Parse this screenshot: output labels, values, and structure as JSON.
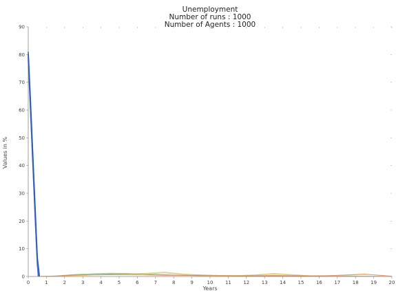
{
  "chart_data": {
    "type": "line",
    "title": [
      "Unemployment",
      "Number of runs : 1000",
      "Number of Agents : 1000"
    ],
    "xlabel": "Years",
    "ylabel": "Values in %",
    "xlim": [
      0,
      20
    ],
    "ylim": [
      0,
      90
    ],
    "xticks": [
      0,
      1,
      2,
      3,
      4,
      5,
      6,
      7,
      8,
      9,
      10,
      11,
      12,
      13,
      14,
      15,
      16,
      17,
      18,
      19,
      20
    ],
    "yticks": [
      0,
      10,
      20,
      30,
      40,
      50,
      60,
      70,
      80,
      90
    ],
    "grid": false,
    "series_colors": [
      "#2b2f7f",
      "#3b4bb0",
      "#5a6fd0",
      "#1f5fa8",
      "#3a8f6a",
      "#7ab85a",
      "#c9c95a",
      "#e3b04a",
      "#e07a5f",
      "#d0445a",
      "#9b4db0",
      "#6a3fa0"
    ],
    "series": [
      {
        "x": [
          0,
          0.1,
          0.2,
          0.3,
          0.4,
          0.5,
          0.6
        ],
        "values": [
          80,
          66,
          51,
          36,
          21,
          6,
          0
        ]
      },
      {
        "x": [
          0,
          0.1,
          0.2,
          0.3,
          0.4,
          0.5,
          0.55
        ],
        "values": [
          79,
          64,
          49,
          34,
          19,
          5,
          0
        ]
      },
      {
        "x": [
          0,
          0.1,
          0.2,
          0.3,
          0.4,
          0.5,
          0.58
        ],
        "values": [
          78,
          63,
          48,
          33,
          18,
          4,
          0
        ]
      },
      {
        "x": [
          0,
          0.1,
          0.2,
          0.3,
          0.4,
          0.5,
          0.62
        ],
        "values": [
          81,
          67,
          52,
          37,
          22,
          7,
          0
        ]
      },
      {
        "x": [
          0.6,
          1.5,
          2.5,
          3.5,
          4.5,
          5.5,
          6.5,
          7.5,
          8.5,
          9.5,
          10.5,
          11.5,
          12.5,
          13.5,
          14.5,
          15.5,
          16.5,
          17.5,
          18.5,
          19.5,
          20
        ],
        "values": [
          0,
          0.1,
          0.5,
          0.7,
          0.9,
          1.0,
          0.8,
          0.6,
          0.4,
          0.3,
          0.3,
          0.2,
          0.2,
          0.2,
          0.2,
          0.1,
          0.1,
          0.1,
          0.1,
          0.1,
          0.1
        ]
      },
      {
        "x": [
          0.6,
          1.5,
          2.5,
          3.5,
          4.5,
          5.5,
          6.5,
          7.5,
          8.5,
          9.5,
          10.5,
          11.5,
          12.5,
          13.5,
          14.5,
          15.5,
          16.5,
          17.5,
          18.5,
          19.5,
          20
        ],
        "values": [
          0,
          0.2,
          0.7,
          1.0,
          1.2,
          1.1,
          0.9,
          0.6,
          0.5,
          0.4,
          0.3,
          0.3,
          0.2,
          0.3,
          0.2,
          0.1,
          0.1,
          0.2,
          0.1,
          0.1,
          0.0
        ]
      },
      {
        "x": [
          0.6,
          1.5,
          2.5,
          3.5,
          4.5,
          5.5,
          6.5,
          7.5,
          8.5,
          9.5,
          10.5,
          11.5,
          12.5,
          13.5,
          14.5,
          15.5,
          16.5,
          17.5,
          18.5,
          19.5,
          20
        ],
        "values": [
          0,
          0.1,
          0.4,
          0.6,
          0.8,
          0.9,
          1.2,
          1.6,
          0.9,
          0.5,
          0.4,
          0.3,
          0.6,
          1.1,
          0.7,
          0.3,
          0.2,
          0.2,
          0.2,
          0.1,
          0.1
        ]
      },
      {
        "x": [
          0.6,
          1.5,
          2.5,
          3.5,
          4.5,
          5.5,
          6.5,
          7.5,
          8.5,
          9.5,
          10.5,
          11.5,
          12.5,
          13.5,
          14.5,
          15.5,
          16.5,
          17.5,
          18.5,
          19.5,
          20
        ],
        "values": [
          0,
          0.1,
          0.3,
          0.5,
          0.6,
          0.7,
          0.9,
          1.3,
          0.8,
          0.6,
          0.4,
          0.4,
          0.5,
          0.9,
          0.5,
          0.3,
          0.3,
          0.6,
          0.9,
          0.3,
          0.1
        ]
      },
      {
        "x": [
          0.6,
          1.5,
          2.5,
          3.5,
          4.5,
          5.5,
          6.5,
          7.5,
          8.5,
          9.5,
          10.5,
          11.5,
          12.5,
          13.5,
          14.5,
          15.5,
          16.5,
          17.5,
          18.5,
          19.5,
          20
        ],
        "values": [
          0,
          0.2,
          0.5,
          0.6,
          0.7,
          0.6,
          0.5,
          0.4,
          0.4,
          0.3,
          0.3,
          0.2,
          0.3,
          0.4,
          0.3,
          0.2,
          0.3,
          0.5,
          0.8,
          0.4,
          0.1
        ]
      }
    ]
  }
}
